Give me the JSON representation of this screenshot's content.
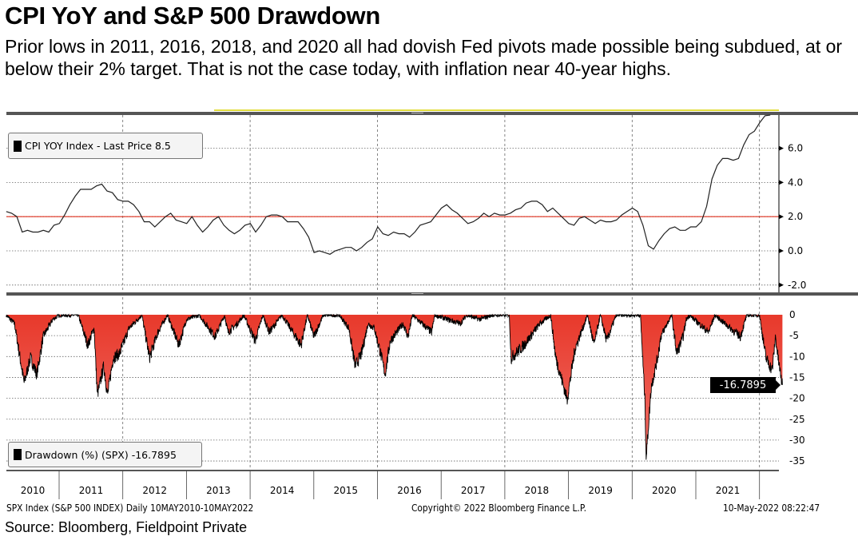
{
  "header": {
    "title": "CPI YoY and S&P 500 Drawdown",
    "subtitle": "Prior lows in 2011, 2016, 2018, and 2020 all had dovish Fed pivots made possible being subdued, at or below their 2% target.  That is not the case today, with inflation near 40-year highs."
  },
  "footer": {
    "left": "SPX Index (S&P 500 INDEX)  Daily 10MAY2010-10MAY2022",
    "center": "Copyright© 2022 Bloomberg Finance L.P.",
    "right": "10-May-2022 08:22:47",
    "source": "Source: Bloomberg, Fieldpoint Private"
  },
  "colors": {
    "cpi_line": "#222222",
    "target_line": "#e0301e",
    "drawdown_fill": "#e8392b",
    "grid": "#555555"
  },
  "chart_data": [
    {
      "type": "line",
      "title": "CPI YOY Index",
      "legend": "CPI YOY Index - Last Price 8.5",
      "legend_position": "top-left",
      "ylim": [
        -2.5,
        8.0
      ],
      "yticks": [
        "6.0",
        "4.0",
        "2.0",
        "0.0",
        "-2.0"
      ],
      "ytick_values": [
        6,
        4,
        2,
        0,
        -2
      ],
      "reference_line": {
        "value": 2.0
      },
      "start": 2010.17,
      "step_months": 1,
      "values": [
        2.3,
        2.2,
        2.0,
        1.1,
        1.2,
        1.1,
        1.1,
        1.2,
        1.1,
        1.5,
        1.6,
        2.1,
        2.7,
        3.2,
        3.6,
        3.6,
        3.6,
        3.8,
        3.9,
        3.5,
        3.4,
        3.0,
        2.9,
        2.9,
        2.7,
        2.3,
        1.7,
        1.7,
        1.4,
        1.7,
        2.0,
        2.2,
        1.8,
        1.7,
        1.6,
        2.0,
        1.5,
        1.1,
        1.4,
        1.8,
        2.0,
        1.5,
        1.2,
        1.0,
        1.2,
        1.5,
        1.6,
        1.1,
        1.5,
        2.0,
        2.1,
        2.1,
        2.0,
        1.7,
        1.7,
        1.7,
        1.3,
        0.8,
        -0.1,
        0.0,
        -0.1,
        -0.2,
        0.0,
        0.1,
        0.2,
        0.2,
        0.0,
        0.2,
        0.5,
        0.7,
        1.4,
        1.0,
        0.9,
        1.1,
        1.0,
        1.0,
        0.8,
        1.1,
        1.5,
        1.6,
        1.7,
        2.1,
        2.5,
        2.7,
        2.4,
        2.2,
        1.9,
        1.6,
        1.7,
        1.9,
        2.2,
        2.0,
        2.2,
        2.1,
        2.1,
        2.2,
        2.4,
        2.5,
        2.8,
        2.9,
        2.9,
        2.7,
        2.3,
        2.5,
        2.2,
        1.9,
        1.6,
        1.5,
        1.9,
        2.0,
        1.8,
        1.6,
        1.8,
        1.7,
        1.7,
        1.8,
        2.1,
        2.3,
        2.5,
        2.3,
        1.5,
        0.3,
        0.1,
        0.6,
        1.0,
        1.3,
        1.4,
        1.2,
        1.2,
        1.4,
        1.4,
        1.7,
        2.6,
        4.2,
        5.0,
        5.4,
        5.4,
        5.3,
        5.4,
        6.2,
        6.8,
        7.0,
        7.5,
        7.9,
        8.5
      ]
    },
    {
      "type": "area",
      "title": "Drawdown (%) (SPX)",
      "legend": "Drawdown (%) (SPX) -16.7895",
      "legend_position": "bottom-left",
      "last_value_label": "-16.7895",
      "ylim": [
        -38,
        1
      ],
      "yticks": [
        "0",
        "-5",
        "-10",
        "-15",
        "-20",
        "-25",
        "-30",
        "-35"
      ],
      "ytick_values": [
        0,
        -5,
        -10,
        -15,
        -20,
        -25,
        -30,
        -35
      ],
      "points": [
        [
          2010.17,
          0
        ],
        [
          2010.3,
          -2
        ],
        [
          2010.45,
          -16
        ],
        [
          2010.55,
          -10
        ],
        [
          2010.65,
          -14
        ],
        [
          2010.75,
          -5
        ],
        [
          2010.9,
          -1
        ],
        [
          2011.0,
          0
        ],
        [
          2011.3,
          0
        ],
        [
          2011.45,
          -7
        ],
        [
          2011.55,
          -3
        ],
        [
          2011.6,
          -19
        ],
        [
          2011.7,
          -12
        ],
        [
          2011.76,
          -19
        ],
        [
          2011.85,
          -10
        ],
        [
          2011.95,
          -9
        ],
        [
          2012.1,
          -3
        ],
        [
          2012.3,
          0
        ],
        [
          2012.42,
          -10
        ],
        [
          2012.55,
          -4
        ],
        [
          2012.7,
          0
        ],
        [
          2012.88,
          -7
        ],
        [
          2013.0,
          -1
        ],
        [
          2013.2,
          0
        ],
        [
          2013.45,
          -5
        ],
        [
          2013.6,
          0
        ],
        [
          2013.65,
          -4
        ],
        [
          2013.8,
          -2
        ],
        [
          2013.9,
          0
        ],
        [
          2014.08,
          -6
        ],
        [
          2014.2,
          0
        ],
        [
          2014.3,
          -4
        ],
        [
          2014.5,
          0
        ],
        [
          2014.8,
          -7
        ],
        [
          2014.9,
          0
        ],
        [
          2015.0,
          -5
        ],
        [
          2015.15,
          0
        ],
        [
          2015.4,
          0
        ],
        [
          2015.55,
          -3
        ],
        [
          2015.65,
          -12
        ],
        [
          2015.75,
          -9
        ],
        [
          2015.85,
          -2
        ],
        [
          2015.95,
          -3
        ],
        [
          2016.05,
          -9
        ],
        [
          2016.12,
          -14
        ],
        [
          2016.2,
          -6
        ],
        [
          2016.4,
          -2
        ],
        [
          2016.48,
          -5
        ],
        [
          2016.55,
          0
        ],
        [
          2016.85,
          -4
        ],
        [
          2016.9,
          0
        ],
        [
          2017.3,
          -2
        ],
        [
          2017.4,
          0
        ],
        [
          2017.6,
          -1
        ],
        [
          2017.8,
          0
        ],
        [
          2018.07,
          0
        ],
        [
          2018.1,
          -10
        ],
        [
          2018.3,
          -7
        ],
        [
          2018.55,
          -2
        ],
        [
          2018.72,
          0
        ],
        [
          2018.8,
          -10
        ],
        [
          2018.98,
          -20
        ],
        [
          2019.1,
          -8
        ],
        [
          2019.3,
          0
        ],
        [
          2019.4,
          -7
        ],
        [
          2019.5,
          0
        ],
        [
          2019.6,
          -6
        ],
        [
          2019.75,
          0
        ],
        [
          2020.13,
          0
        ],
        [
          2020.2,
          -20
        ],
        [
          2020.22,
          -34
        ],
        [
          2020.3,
          -17
        ],
        [
          2020.4,
          -10
        ],
        [
          2020.45,
          -5
        ],
        [
          2020.55,
          -2
        ],
        [
          2020.62,
          0
        ],
        [
          2020.7,
          -9
        ],
        [
          2020.8,
          -5
        ],
        [
          2020.85,
          -1
        ],
        [
          2020.9,
          0
        ],
        [
          2021.2,
          -4
        ],
        [
          2021.3,
          0
        ],
        [
          2021.7,
          -5
        ],
        [
          2021.8,
          0
        ],
        [
          2022.0,
          0
        ],
        [
          2022.1,
          -10
        ],
        [
          2022.2,
          -13
        ],
        [
          2022.25,
          -5
        ],
        [
          2022.3,
          -11
        ],
        [
          2022.36,
          -16.8
        ]
      ]
    }
  ],
  "xaxis": {
    "labels": [
      "2010",
      "2011",
      "2012",
      "2013",
      "2014",
      "2015",
      "2016",
      "2017",
      "2018",
      "2019",
      "2020",
      "2021"
    ]
  }
}
